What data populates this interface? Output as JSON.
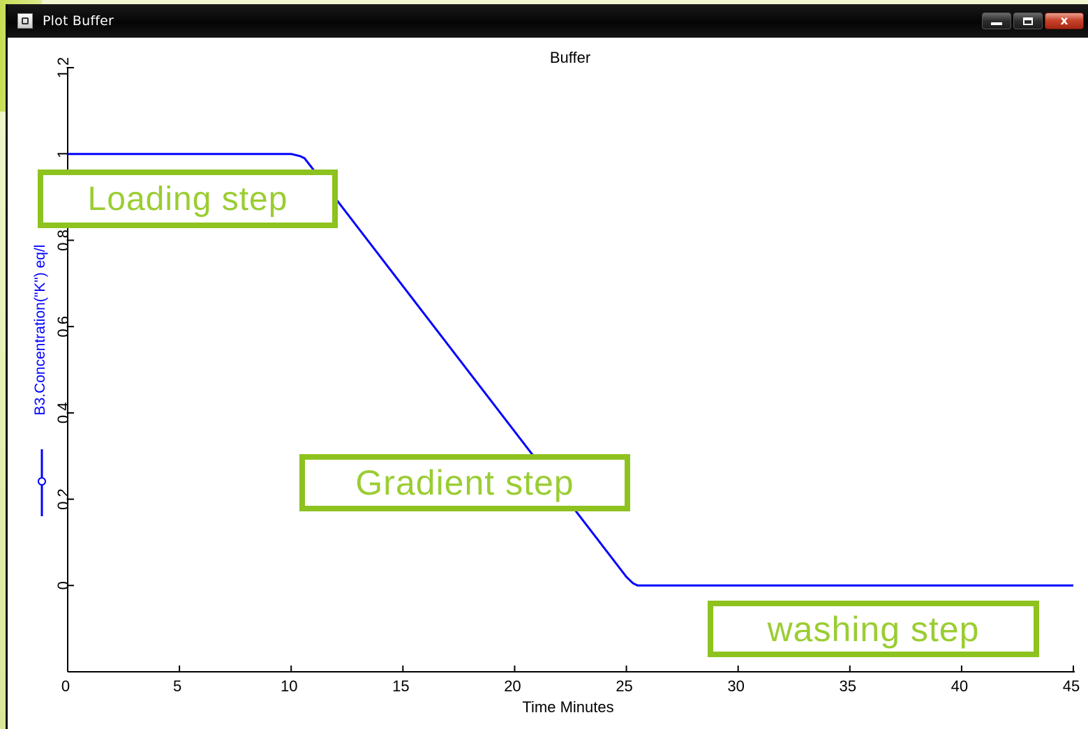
{
  "window": {
    "title": "Plot Buffer",
    "controls": {
      "minimize": "minimize",
      "maximize": "maximize",
      "close": "x"
    }
  },
  "annotations": {
    "loading": "Loading step",
    "gradient": "Gradient step",
    "washing": "washing step",
    "border_color": "#8dc21f",
    "text_color": "#9acd32"
  },
  "chart_data": {
    "type": "line",
    "title": "Buffer",
    "xlabel": "Time Minutes",
    "ylabel": "B3.Concentration(\"K\") eq/l",
    "xlim": [
      0,
      45
    ],
    "ylim": [
      -0.2,
      1.2
    ],
    "x_ticks": [
      "0",
      "5",
      "10",
      "15",
      "20",
      "25",
      "30",
      "35",
      "40",
      "45"
    ],
    "y_ticks": [
      "0",
      "0.2",
      "0.4",
      "0.6",
      "0.8",
      "1",
      "1.2"
    ],
    "grid": false,
    "series": [
      {
        "color": "#0000ff",
        "x": [
          0,
          10,
          10.4,
          10.6,
          10.9,
          25.0,
          25.3,
          25.5,
          45
        ],
        "y": [
          1.0,
          1.0,
          0.995,
          0.99,
          0.97,
          0.02,
          0.005,
          0.0,
          0.0
        ]
      }
    ]
  }
}
